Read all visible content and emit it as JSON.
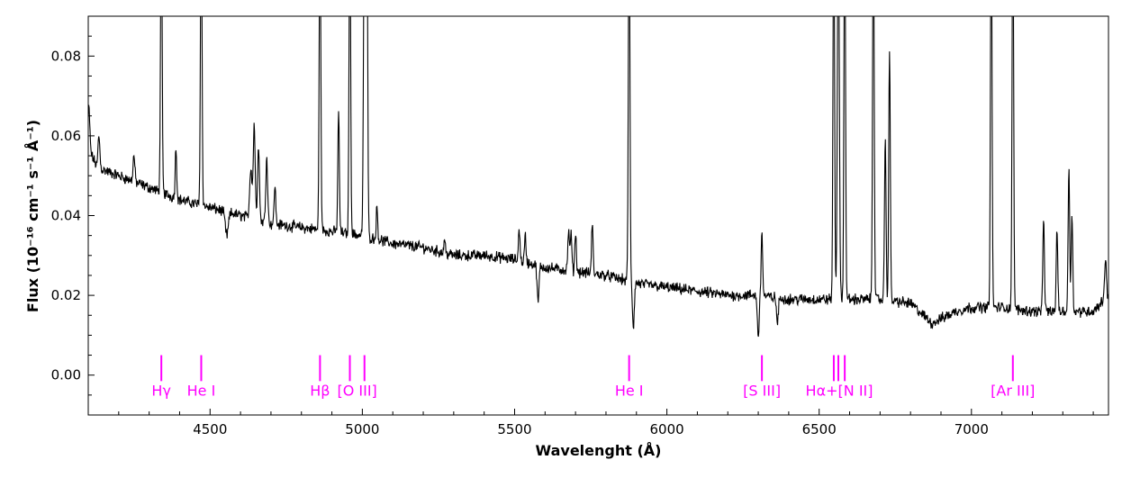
{
  "chart_data": {
    "type": "line",
    "title": "",
    "xlabel": "Wavelenght (Å)",
    "ylabel": "Flux (10⁻¹⁶ cm⁻¹ s⁻¹ Å⁻¹)",
    "xlim": [
      4100,
      7450
    ],
    "ylim": [
      -0.01,
      0.09
    ],
    "x_ticks": [
      4500,
      5000,
      5500,
      6000,
      6500,
      7000
    ],
    "y_ticks": [
      0.0,
      0.02,
      0.04,
      0.06,
      0.08
    ],
    "x_tick_labels": [
      "4500",
      "5000",
      "5500",
      "6000",
      "6500",
      "7000"
    ],
    "y_tick_labels": [
      "0.00",
      "0.02",
      "0.04",
      "0.06",
      "0.08"
    ],
    "grid": false,
    "line_color": "#000000",
    "marker_color": "#ff00ff",
    "spectrum": {
      "continuum": [
        [
          4100,
          0.057
        ],
        [
          4130,
          0.052
        ],
        [
          4200,
          0.05
        ],
        [
          4300,
          0.047
        ],
        [
          4400,
          0.044
        ],
        [
          4500,
          0.042
        ],
        [
          4600,
          0.04
        ],
        [
          4700,
          0.038
        ],
        [
          4800,
          0.037
        ],
        [
          4900,
          0.036
        ],
        [
          5000,
          0.035
        ],
        [
          5100,
          0.033
        ],
        [
          5200,
          0.032
        ],
        [
          5300,
          0.03
        ],
        [
          5400,
          0.03
        ],
        [
          5500,
          0.029
        ],
        [
          5600,
          0.027
        ],
        [
          5700,
          0.026
        ],
        [
          5800,
          0.025
        ],
        [
          5900,
          0.023
        ],
        [
          6000,
          0.022
        ],
        [
          6100,
          0.021
        ],
        [
          6200,
          0.02
        ],
        [
          6300,
          0.02
        ],
        [
          6400,
          0.019
        ],
        [
          6500,
          0.019
        ],
        [
          6600,
          0.019
        ],
        [
          6700,
          0.019
        ],
        [
          6800,
          0.018
        ],
        [
          6870,
          0.013
        ],
        [
          6950,
          0.016
        ],
        [
          7000,
          0.017
        ],
        [
          7100,
          0.017
        ],
        [
          7200,
          0.016
        ],
        [
          7300,
          0.016
        ],
        [
          7400,
          0.016
        ],
        [
          7450,
          0.02
        ]
      ],
      "features": [
        [
          4102,
          0.067,
          3
        ],
        [
          4135,
          0.06,
          3
        ],
        [
          4250,
          0.055,
          3
        ],
        [
          4340,
          0.12,
          2.5
        ],
        [
          4388,
          0.057,
          2.5
        ],
        [
          4471,
          0.12,
          2.5
        ],
        [
          4555,
          0.035,
          5
        ],
        [
          4634,
          0.052,
          4
        ],
        [
          4645,
          0.063,
          3
        ],
        [
          4659,
          0.058,
          3
        ],
        [
          4686,
          0.055,
          3
        ],
        [
          4713,
          0.048,
          2.5
        ],
        [
          4861,
          0.12,
          2.5
        ],
        [
          4922,
          0.066,
          2.5
        ],
        [
          4959,
          0.12,
          2.5
        ],
        [
          5007,
          0.12,
          3
        ],
        [
          5015,
          0.12,
          2.5
        ],
        [
          5048,
          0.042,
          2.5
        ],
        [
          5270,
          0.034,
          2.5
        ],
        [
          5515,
          0.037,
          2.5
        ],
        [
          5535,
          0.035,
          2.5
        ],
        [
          5577,
          0.018,
          3
        ],
        [
          5677,
          0.036,
          2.5
        ],
        [
          5685,
          0.036,
          2.5
        ],
        [
          5700,
          0.036,
          2.5
        ],
        [
          5755,
          0.038,
          2.5
        ],
        [
          5876,
          0.12,
          2.5
        ],
        [
          5890,
          0.012,
          3
        ],
        [
          6300,
          0.01,
          3
        ],
        [
          6312,
          0.036,
          2.5
        ],
        [
          6363,
          0.013,
          3
        ],
        [
          6548,
          0.12,
          2.5
        ],
        [
          6563,
          0.12,
          3
        ],
        [
          6584,
          0.12,
          2.5
        ],
        [
          6678,
          0.12,
          2.5
        ],
        [
          6717,
          0.06,
          2.5
        ],
        [
          6731,
          0.082,
          2.5
        ],
        [
          7065,
          0.12,
          2.5
        ],
        [
          7136,
          0.12,
          2.5
        ],
        [
          7237,
          0.04,
          2.5
        ],
        [
          7281,
          0.037,
          2.5
        ],
        [
          7320,
          0.052,
          2.5
        ],
        [
          7330,
          0.041,
          2.5
        ],
        [
          7440,
          0.029,
          3
        ]
      ]
    },
    "line_markers": [
      {
        "label": "Hγ",
        "wavelengths": [
          4340
        ]
      },
      {
        "label": "He I",
        "wavelengths": [
          4471
        ]
      },
      {
        "label": "Hβ",
        "wavelengths": [
          4861
        ]
      },
      {
        "label": "[O III]",
        "wavelengths": [
          4959,
          5007
        ]
      },
      {
        "label": "He I",
        "wavelengths": [
          5876
        ]
      },
      {
        "label": "[S III]",
        "wavelengths": [
          6312
        ]
      },
      {
        "label": "Hα+[N II]",
        "wavelengths": [
          6548,
          6563,
          6584
        ]
      },
      {
        "label": "[Ar III]",
        "wavelengths": [
          7136
        ]
      }
    ]
  }
}
